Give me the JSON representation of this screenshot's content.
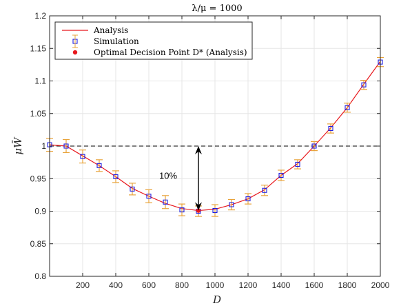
{
  "chart_data": {
    "type": "line",
    "title": "λ/μ = 1000",
    "xlabel": "D",
    "ylabel": "μW̄",
    "xlim": [
      0,
      2000
    ],
    "ylim": [
      0.8,
      1.2
    ],
    "xticks": [
      200,
      400,
      600,
      800,
      1000,
      1200,
      1400,
      1600,
      1800,
      2000
    ],
    "xtick_labels": [
      "200",
      "400",
      "600",
      "800",
      "1000",
      "1200",
      "1400",
      "1600",
      "1800",
      "2000"
    ],
    "yticks": [
      0.8,
      0.85,
      0.9,
      0.95,
      1,
      1.05,
      1.1,
      1.15,
      1.2
    ],
    "ytick_labels": [
      "0.8",
      "0.85",
      "0.9",
      "0.95",
      "1",
      "1.05",
      "1.1",
      "1.15",
      "1.2"
    ],
    "grid": true,
    "legend_position": "top-left",
    "series": [
      {
        "name": "Analysis",
        "kind": "line",
        "color": "#e8181d",
        "x": [
          0,
          100,
          200,
          300,
          400,
          500,
          600,
          700,
          800,
          900,
          1000,
          1100,
          1200,
          1300,
          1400,
          1500,
          1600,
          1700,
          1800,
          1900,
          2000
        ],
        "y": [
          1.002,
          1.0,
          0.985,
          0.97,
          0.953,
          0.935,
          0.923,
          0.912,
          0.904,
          0.901,
          0.903,
          0.91,
          0.919,
          0.933,
          0.955,
          0.973,
          1.0,
          1.028,
          1.059,
          1.095,
          1.13
        ]
      },
      {
        "name": "Simulation",
        "kind": "markers-errorbars",
        "color": "#1f1fe0",
        "errorbar_color": "#e8a33a",
        "x": [
          0,
          100,
          200,
          300,
          400,
          500,
          600,
          700,
          800,
          900,
          1000,
          1100,
          1200,
          1300,
          1400,
          1500,
          1600,
          1700,
          1800,
          1900,
          2000
        ],
        "y": [
          1.002,
          1.0,
          0.984,
          0.97,
          0.953,
          0.934,
          0.923,
          0.914,
          0.902,
          0.9,
          0.901,
          0.91,
          0.919,
          0.932,
          0.955,
          0.972,
          1.0,
          1.027,
          1.059,
          1.094,
          1.129
        ],
        "err": [
          0.01,
          0.01,
          0.01,
          0.009,
          0.009,
          0.009,
          0.01,
          0.01,
          0.009,
          0.008,
          0.009,
          0.008,
          0.008,
          0.008,
          0.008,
          0.007,
          0.007,
          0.007,
          0.007,
          0.007,
          0.007
        ]
      },
      {
        "name": "Optimal Decision Point D* (Analysis)",
        "kind": "point",
        "color": "#e8181d",
        "x": [
          900
        ],
        "y": [
          0.901
        ]
      }
    ],
    "reference_line": {
      "y": 1,
      "style": "dashed",
      "color": "#000000"
    },
    "annotations": [
      {
        "text": "10%",
        "x": 700,
        "y": 0.95
      },
      {
        "kind": "double-arrow",
        "x": 900,
        "y_from": 1.0,
        "y_to": 0.901
      }
    ]
  }
}
